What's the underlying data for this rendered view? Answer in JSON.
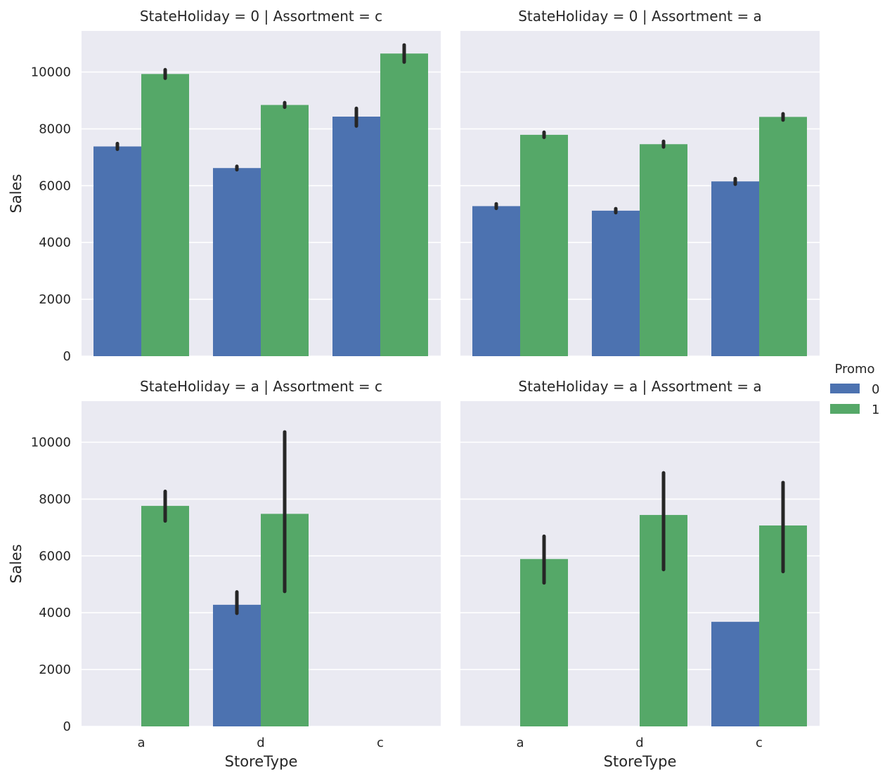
{
  "chart_data": {
    "type": "bar",
    "figure": "faceted grouped bar chart",
    "x_label": "StoreType",
    "y_label": "Sales",
    "categories": [
      "a",
      "d",
      "c"
    ],
    "y_ticks": [
      0,
      2000,
      4000,
      6000,
      8000,
      10000
    ],
    "ylim": [
      0,
      11500
    ],
    "grid": true,
    "legend": {
      "title": "Promo",
      "placement": "right",
      "entries": [
        {
          "label": "0",
          "color": "#4c72b0"
        },
        {
          "label": "1",
          "color": "#55a868"
        }
      ]
    },
    "colors": {
      "background": "#eaeaf2",
      "grid": "#ffffff",
      "error_bar": "#262626"
    },
    "panels": [
      {
        "title": "StateHoliday = 0 | Assortment = c",
        "series": [
          {
            "name": "0",
            "values": [
              7380,
              6620,
              8430
            ],
            "err_low": [
              7280,
              6560,
              8100
            ],
            "err_high": [
              7480,
              6680,
              8720
            ]
          },
          {
            "name": "1",
            "values": [
              9930,
              8840,
              10650
            ],
            "err_low": [
              9780,
              8760,
              10350
            ],
            "err_high": [
              10080,
              8920,
              10950
            ]
          }
        ]
      },
      {
        "title": "StateHoliday = 0 | Assortment = a",
        "series": [
          {
            "name": "0",
            "values": [
              5280,
              5120,
              6150
            ],
            "err_low": [
              5200,
              5050,
              6050
            ],
            "err_high": [
              5360,
              5190,
              6250
            ]
          },
          {
            "name": "1",
            "values": [
              7790,
              7460,
              8420
            ],
            "err_low": [
              7700,
              7360,
              8310
            ],
            "err_high": [
              7880,
              7560,
              8530
            ]
          }
        ]
      },
      {
        "title": "StateHoliday = a | Assortment = c",
        "series": [
          {
            "name": "0",
            "values": [
              null,
              4280,
              null
            ],
            "err_low": [
              null,
              3980,
              null
            ],
            "err_high": [
              null,
              4730,
              null
            ]
          },
          {
            "name": "1",
            "values": [
              7760,
              7480,
              null
            ],
            "err_low": [
              7230,
              4750,
              null
            ],
            "err_high": [
              8270,
              10360,
              null
            ]
          }
        ]
      },
      {
        "title": "StateHoliday = a | Assortment = a",
        "series": [
          {
            "name": "0",
            "values": [
              null,
              null,
              3680
            ],
            "err_low": [
              null,
              null,
              null
            ],
            "err_high": [
              null,
              null,
              null
            ]
          },
          {
            "name": "1",
            "values": [
              5890,
              7440,
              7070
            ],
            "err_low": [
              5050,
              5520,
              5450
            ],
            "err_high": [
              6690,
              8920,
              8580
            ]
          }
        ]
      }
    ]
  }
}
